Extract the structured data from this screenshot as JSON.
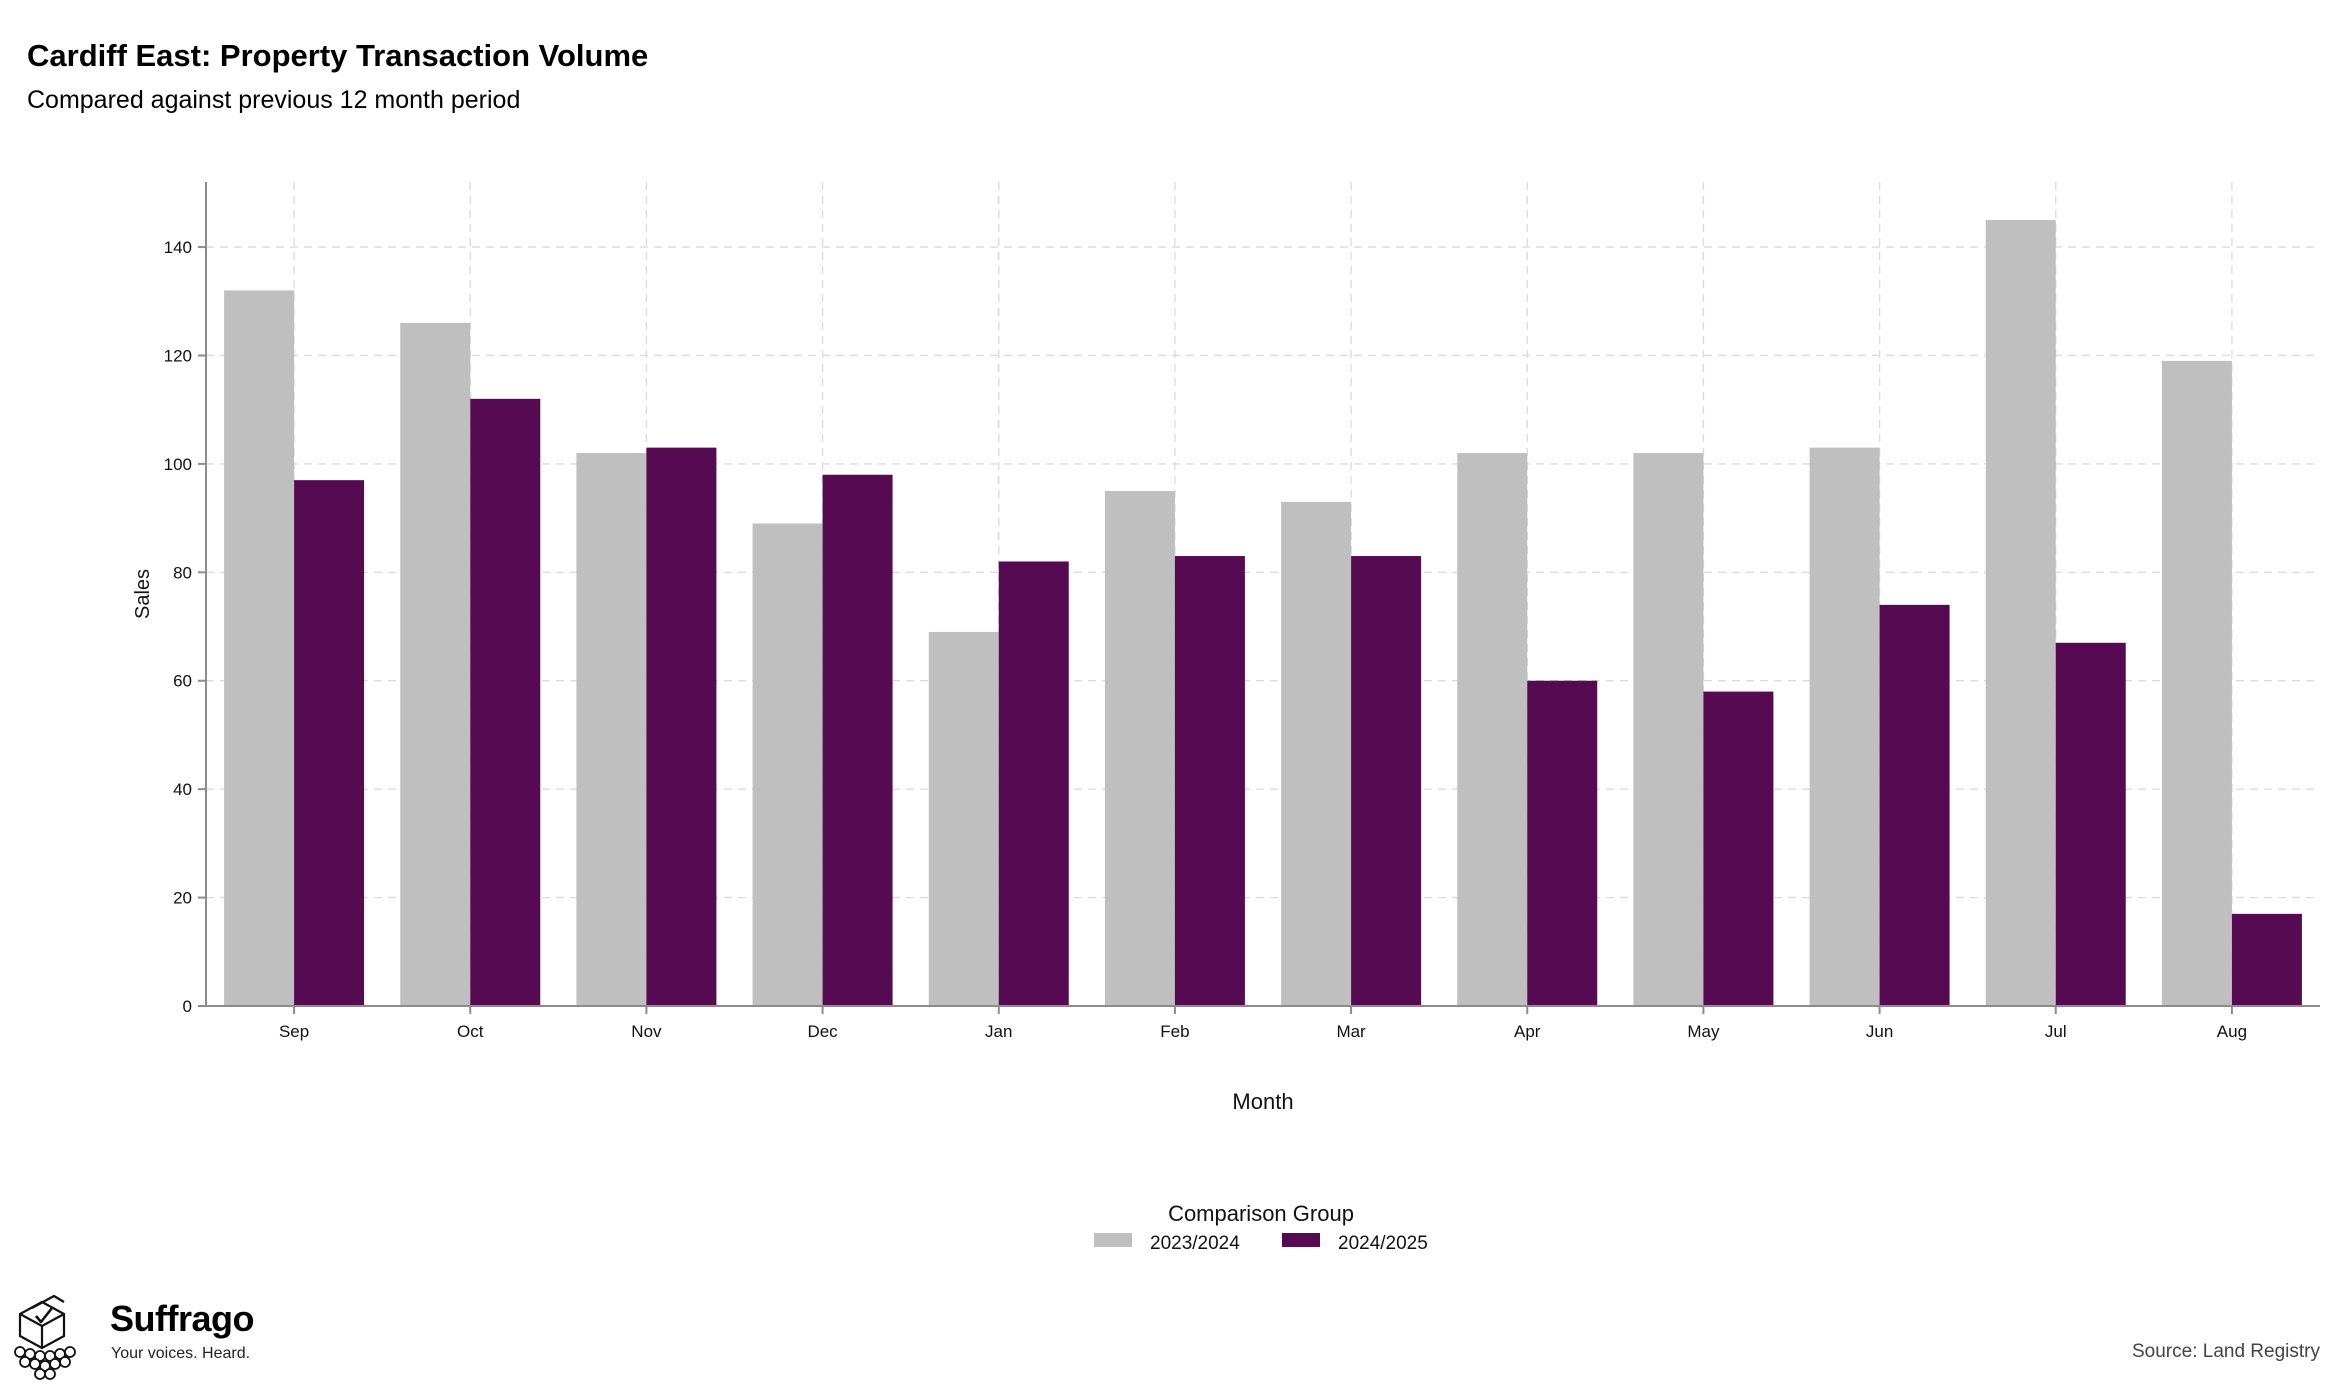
{
  "chart_data": {
    "type": "bar",
    "title": "Cardiff East: Property Transaction Volume",
    "subtitle": "Compared against previous 12 month period",
    "xlabel": "Month",
    "ylabel": "Sales",
    "categories": [
      "Sep",
      "Oct",
      "Nov",
      "Dec",
      "Jan",
      "Feb",
      "Mar",
      "Apr",
      "May",
      "Jun",
      "Jul",
      "Aug"
    ],
    "series": [
      {
        "name": "2023/2024",
        "color": "#bfbfbf",
        "values": [
          132,
          126,
          102,
          89,
          69,
          95,
          93,
          102,
          102,
          103,
          145,
          119
        ]
      },
      {
        "name": "2024/2025",
        "color": "#560a52",
        "values": [
          97,
          112,
          103,
          98,
          82,
          83,
          83,
          60,
          58,
          74,
          67,
          17
        ]
      }
    ],
    "yticks": [
      0,
      20,
      40,
      60,
      80,
      100,
      120,
      140
    ],
    "ylim": [
      0,
      152
    ],
    "grid": true,
    "legend": {
      "title": "Comparison Group",
      "position": "bottom-center"
    }
  },
  "branding": {
    "name": "Suffrago",
    "tagline": "Your voices. Heard."
  },
  "source": "Source: Land Registry"
}
